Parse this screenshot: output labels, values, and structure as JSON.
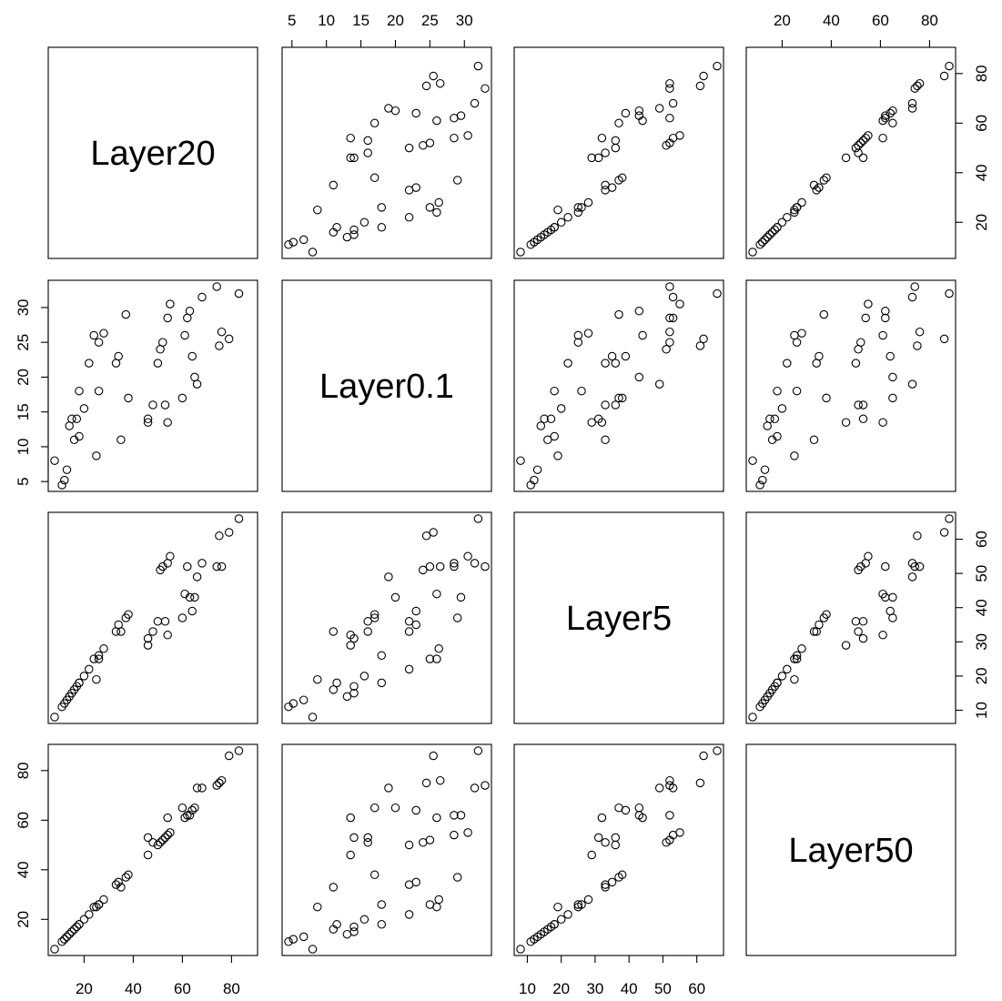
{
  "chart_data": {
    "type": "scatter",
    "title": "",
    "variables": [
      {
        "name": "Layer20",
        "range": [
          8,
          88
        ],
        "ticks": [
          20,
          40,
          60,
          80
        ]
      },
      {
        "name": "Layer0.1",
        "range": [
          4.5,
          33
        ],
        "ticks": [
          5,
          10,
          15,
          20,
          25,
          30
        ]
      },
      {
        "name": "Layer5",
        "range": [
          8,
          66
        ],
        "ticks": [
          10,
          20,
          30,
          40,
          50,
          60
        ]
      },
      {
        "name": "Layer50",
        "range": [
          8,
          88
        ],
        "ticks": [
          20,
          40,
          60,
          80
        ]
      }
    ],
    "axes": {
      "top": [
        null,
        1,
        null,
        3
      ],
      "bottom": [
        0,
        null,
        2,
        null
      ],
      "left": [
        null,
        1,
        null,
        3
      ],
      "right": [
        0,
        null,
        2,
        null
      ]
    },
    "grid": false,
    "observations": [
      [
        8,
        8,
        8,
        8
      ],
      [
        11,
        4.5,
        11,
        11
      ],
      [
        13,
        6.7,
        13,
        13
      ],
      [
        14,
        13,
        14,
        14
      ],
      [
        15,
        14,
        15,
        15
      ],
      [
        16,
        11,
        16,
        16
      ],
      [
        17,
        14,
        17,
        17
      ],
      [
        18,
        11.5,
        18,
        18
      ],
      [
        20,
        15.5,
        20,
        20
      ],
      [
        22,
        22,
        22,
        22
      ],
      [
        25,
        8.7,
        19,
        25
      ],
      [
        26,
        18,
        26,
        26
      ],
      [
        26,
        25,
        25,
        26
      ],
      [
        28,
        26.3,
        28,
        28
      ],
      [
        24,
        26,
        25,
        25
      ],
      [
        35,
        11,
        33,
        33
      ],
      [
        34,
        23,
        35,
        35
      ],
      [
        33,
        22,
        33,
        34
      ],
      [
        37,
        29,
        37,
        37
      ],
      [
        38,
        17,
        38,
        38
      ],
      [
        46,
        13.5,
        29,
        46
      ],
      [
        46,
        14,
        31,
        53
      ],
      [
        48,
        16,
        33,
        51
      ],
      [
        50,
        22,
        36,
        50
      ],
      [
        51,
        24,
        51,
        51
      ],
      [
        52,
        25,
        52,
        52
      ],
      [
        53,
        16,
        36,
        53
      ],
      [
        54,
        28.5,
        53,
        54
      ],
      [
        55,
        30.5,
        55,
        55
      ],
      [
        54,
        13.5,
        32,
        61
      ],
      [
        60,
        17,
        37,
        65
      ],
      [
        61,
        26,
        44,
        61
      ],
      [
        62,
        28.5,
        52,
        62
      ],
      [
        63,
        29.5,
        43,
        62
      ],
      [
        64,
        23,
        39,
        64
      ],
      [
        65,
        20,
        43,
        65
      ],
      [
        66,
        19,
        49,
        73
      ],
      [
        68,
        31.5,
        53,
        73
      ],
      [
        74,
        33,
        52,
        74
      ],
      [
        75,
        24.5,
        61,
        75
      ],
      [
        76,
        26.5,
        52,
        76
      ],
      [
        79,
        25.5,
        62,
        86
      ],
      [
        83,
        32,
        66,
        88
      ],
      [
        18,
        18,
        18,
        18
      ],
      [
        12,
        5.2,
        12,
        12
      ]
    ]
  }
}
